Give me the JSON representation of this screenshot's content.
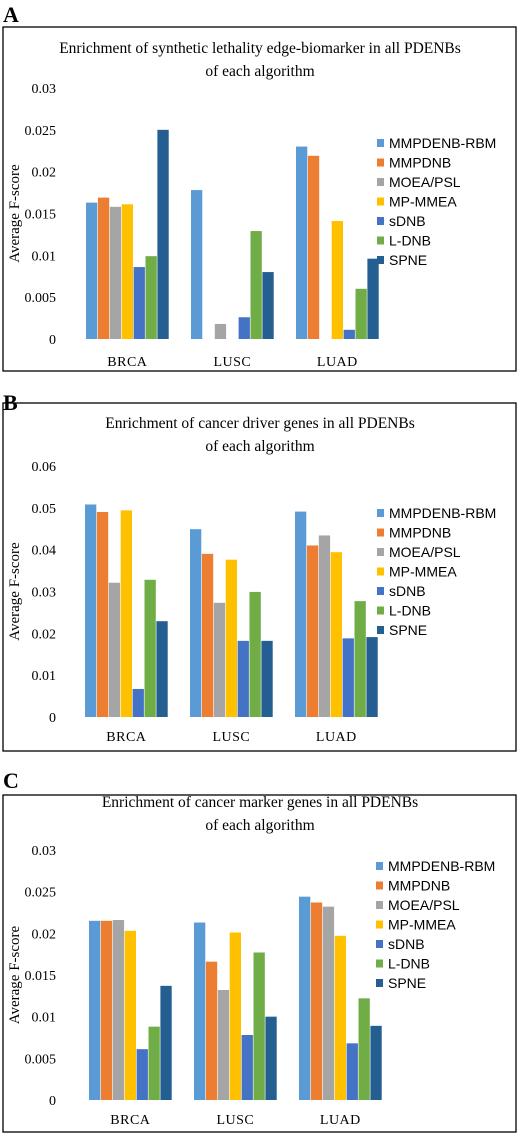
{
  "colors": [
    "#5b9bd5",
    "#ed7d31",
    "#a5a5a5",
    "#ffc000",
    "#4472c4",
    "#70ad47",
    "#255e91"
  ],
  "chart_data": [
    {
      "type": "bar",
      "panel_label": "A",
      "title_lines": [
        "Enrichment of synthetic lethality edge-biomarker in all PDENBs",
        "of each algorithm"
      ],
      "ylabel": "Average F-score",
      "xlabel": "",
      "categories": [
        "BRCA",
        "LUSC",
        "LUAD"
      ],
      "ylim": [
        0,
        0.03
      ],
      "yticks": [
        "0",
        "0.005",
        "0.01",
        "0.015",
        "0.02",
        "0.025",
        "0.03"
      ],
      "grid": false,
      "legend_position": "right",
      "series": [
        {
          "name": "MMPDENB-RBM",
          "values": [
            0.0163,
            0.0178,
            0.023
          ]
        },
        {
          "name": "MMPDNB",
          "values": [
            0.0169,
            0,
            0.0219
          ]
        },
        {
          "name": "MOEA/PSL",
          "values": [
            0.0158,
            0.0018,
            0
          ]
        },
        {
          "name": "MP-MMEA",
          "values": [
            0.0161,
            0,
            0.0141
          ]
        },
        {
          "name": "sDNB",
          "values": [
            0.0086,
            0.0026,
            0.0011
          ]
        },
        {
          "name": "L-DNB",
          "values": [
            0.0099,
            0.0129,
            0.006
          ]
        },
        {
          "name": "SPNE",
          "values": [
            0.025,
            0.008,
            0.0096
          ]
        }
      ]
    },
    {
      "type": "bar",
      "panel_label": "B",
      "title_lines": [
        "Enrichment of cancer driver genes in all PDENBs",
        "of each algorithm"
      ],
      "ylabel": "Average F-score",
      "xlabel": "",
      "categories": [
        "BRCA",
        "LUSC",
        "LUAD"
      ],
      "ylim": [
        0,
        0.06
      ],
      "yticks": [
        "0",
        "0.01",
        "0.02",
        "0.03",
        "0.04",
        "0.05",
        "0.06"
      ],
      "grid": false,
      "legend_position": "right",
      "series": [
        {
          "name": "MMPDENB-RBM",
          "values": [
            0.0508,
            0.0449,
            0.0491
          ]
        },
        {
          "name": "MMPDNB",
          "values": [
            0.049,
            0.039,
            0.041
          ]
        },
        {
          "name": "MOEA/PSL",
          "values": [
            0.0321,
            0.0273,
            0.0434
          ]
        },
        {
          "name": "MP-MMEA",
          "values": [
            0.0494,
            0.0376,
            0.0394
          ]
        },
        {
          "name": "sDNB",
          "values": [
            0.0067,
            0.0182,
            0.0188
          ]
        },
        {
          "name": "L-DNB",
          "values": [
            0.0328,
            0.0299,
            0.0277
          ]
        },
        {
          "name": "SPNE",
          "values": [
            0.0229,
            0.0182,
            0.0191
          ]
        }
      ]
    },
    {
      "type": "bar",
      "panel_label": "C",
      "title_lines": [
        "Enrichment of cancer marker genes in all PDENBs",
        "of each algorithm"
      ],
      "ylabel": "Average F-score",
      "xlabel": "",
      "categories": [
        "BRCA",
        "LUSC",
        "LUAD"
      ],
      "ylim": [
        0,
        0.03
      ],
      "yticks": [
        "0",
        "0.005",
        "0.01",
        "0.015",
        "0.02",
        "0.025",
        "0.03"
      ],
      "grid": false,
      "legend_position": "right",
      "series": [
        {
          "name": "MMPDENB-RBM",
          "values": [
            0.0215,
            0.0213,
            0.0244
          ]
        },
        {
          "name": "MMPDNB",
          "values": [
            0.0215,
            0.0166,
            0.0237
          ]
        },
        {
          "name": "MOEA/PSL",
          "values": [
            0.0216,
            0.0132,
            0.0232
          ]
        },
        {
          "name": "MP-MMEA",
          "values": [
            0.0203,
            0.0201,
            0.0197
          ]
        },
        {
          "name": "sDNB",
          "values": [
            0.0061,
            0.0078,
            0.0068
          ]
        },
        {
          "name": "L-DNB",
          "values": [
            0.0088,
            0.0177,
            0.0122
          ]
        },
        {
          "name": "SPNE",
          "values": [
            0.0137,
            0.01,
            0.0089
          ]
        }
      ]
    }
  ]
}
